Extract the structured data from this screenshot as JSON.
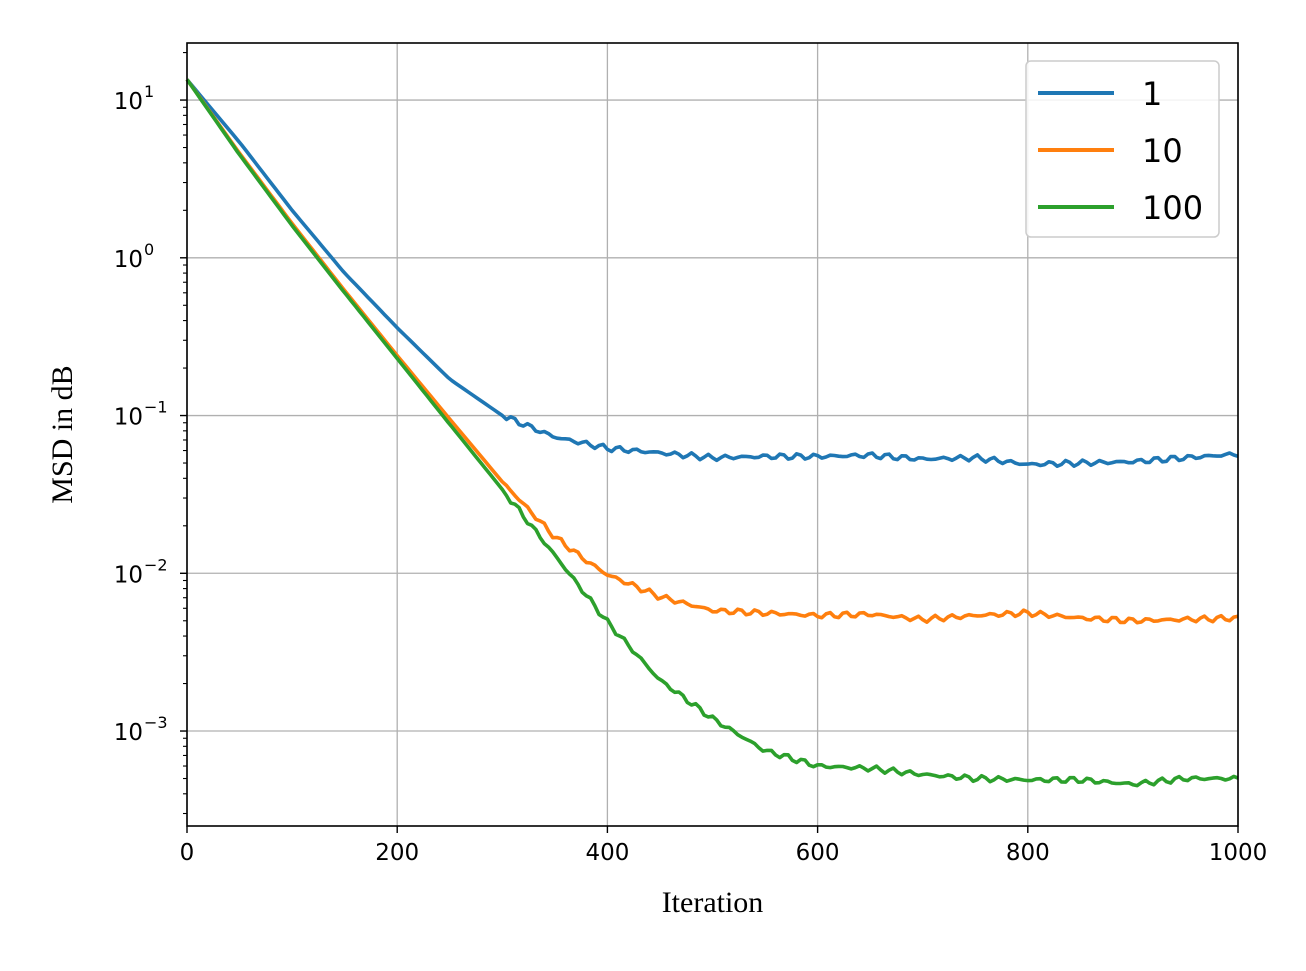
{
  "chart_data": {
    "type": "line",
    "title": "",
    "xlabel": "Iteration",
    "ylabel": "MSD in dB",
    "xlim": [
      0,
      1000
    ],
    "ylim": [
      0.00025,
      23
    ],
    "yscale": "log",
    "grid": true,
    "legend_position": "top-right",
    "x_ticks": [
      {
        "value": 0,
        "label": "0"
      },
      {
        "value": 200,
        "label": "200"
      },
      {
        "value": 400,
        "label": "400"
      },
      {
        "value": 600,
        "label": "600"
      },
      {
        "value": 800,
        "label": "800"
      },
      {
        "value": 1000,
        "label": "1000"
      }
    ],
    "y_ticks": [
      {
        "value": 10,
        "base": "10",
        "exp": "1"
      },
      {
        "value": 1,
        "base": "10",
        "exp": "0"
      },
      {
        "value": 0.1,
        "base": "10",
        "exp": "−1"
      },
      {
        "value": 0.01,
        "base": "10",
        "exp": "−2"
      },
      {
        "value": 0.001,
        "base": "10",
        "exp": "−3"
      }
    ],
    "series": [
      {
        "name": "1",
        "color": "#1f77b4",
        "x": [
          0,
          50,
          100,
          150,
          200,
          250,
          300,
          350,
          400,
          450,
          500,
          550,
          600,
          650,
          700,
          750,
          800,
          850,
          900,
          950,
          1000
        ],
        "y": [
          13.5,
          5.4,
          2.0,
          0.8,
          0.36,
          0.17,
          0.1,
          0.073,
          0.062,
          0.058,
          0.054,
          0.055,
          0.055,
          0.056,
          0.053,
          0.054,
          0.049,
          0.05,
          0.051,
          0.054,
          0.057
        ]
      },
      {
        "name": "10",
        "color": "#ff7f0e",
        "x": [
          0,
          50,
          100,
          150,
          200,
          250,
          300,
          350,
          380,
          400,
          450,
          500,
          550,
          600,
          650,
          700,
          750,
          800,
          850,
          900,
          950,
          1000
        ],
        "y": [
          13.5,
          4.6,
          1.65,
          0.62,
          0.24,
          0.095,
          0.038,
          0.017,
          0.012,
          0.0098,
          0.0071,
          0.0058,
          0.0056,
          0.0054,
          0.0055,
          0.0051,
          0.0054,
          0.0056,
          0.0052,
          0.005,
          0.0051,
          0.0052
        ]
      },
      {
        "name": "100",
        "color": "#2ca02c",
        "x": [
          0,
          50,
          100,
          150,
          200,
          250,
          300,
          350,
          400,
          450,
          500,
          550,
          600,
          650,
          700,
          750,
          800,
          850,
          900,
          950,
          1000
        ],
        "y": [
          13.5,
          4.5,
          1.6,
          0.6,
          0.23,
          0.088,
          0.034,
          0.013,
          0.0049,
          0.0021,
          0.0012,
          0.00075,
          0.0006,
          0.00058,
          0.00053,
          0.0005,
          0.00049,
          0.00049,
          0.00046,
          0.0005,
          0.0005
        ]
      }
    ]
  }
}
